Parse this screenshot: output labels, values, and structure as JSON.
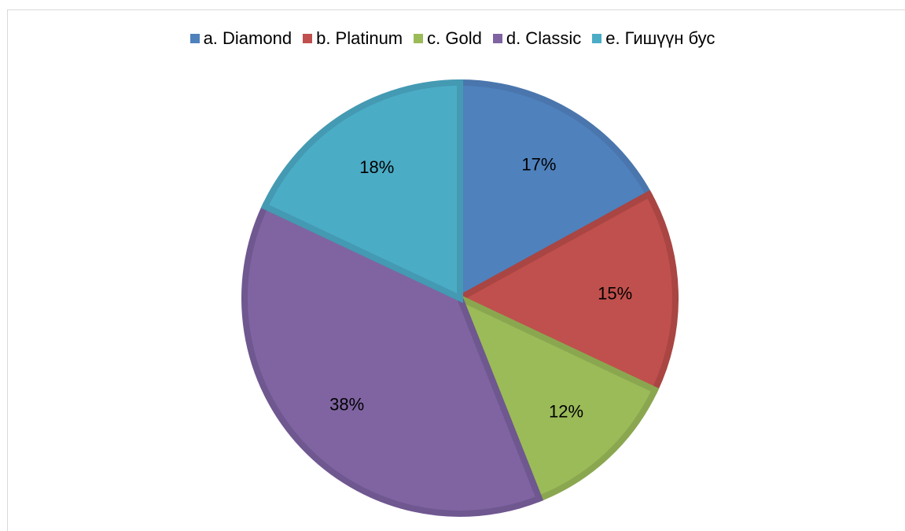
{
  "chart_data": {
    "type": "pie",
    "categories": [
      "a. Diamond",
      "b. Platinum",
      "c. Gold",
      "d. Classic",
      "e. Гишүүн бус"
    ],
    "values": [
      17,
      15,
      12,
      38,
      18
    ],
    "labels": [
      "17%",
      "15%",
      "12%",
      "38%",
      "18%"
    ],
    "colors": [
      "#4f81bd",
      "#c0504d",
      "#9bbb59",
      "#8064a2",
      "#4bacc6"
    ],
    "border_colors": [
      "#4a76ad",
      "#a94542",
      "#8aa750",
      "#6f5790",
      "#449ab2"
    ],
    "legend_position": "top",
    "start_angle": "12 o'clock",
    "direction": "clockwise"
  }
}
